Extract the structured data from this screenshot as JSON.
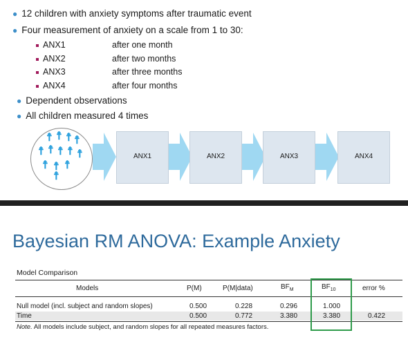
{
  "bullets": {
    "b1": "12 children with anxiety symptoms after traumatic event",
    "b2": "Four measurement of anxiety on a scale from 1 to 30:",
    "measures": [
      {
        "name": "ANX1",
        "desc": "after one month"
      },
      {
        "name": "ANX2",
        "desc": "after two months"
      },
      {
        "name": "ANX3",
        "desc": "after three months"
      },
      {
        "name": "ANX4",
        "desc": "after four months"
      }
    ],
    "b3": "Dependent observations",
    "b4": "All children measured 4 times"
  },
  "flow": {
    "boxes": [
      "ANX1",
      "ANX2",
      "ANX3",
      "ANX4"
    ],
    "icon": "children-group-icon",
    "arrow_color": "#9fd8f2",
    "box_color": "#dde6ef"
  },
  "slide2": {
    "title": "Bayesian RM ANOVA: Example Anxiety"
  },
  "table": {
    "caption": "Model Comparison",
    "headers": {
      "models": "Models",
      "pm": "P(M)",
      "pmd": "P(M|data)",
      "bfm": "BF",
      "bfm_sub": "M",
      "bf10": "BF",
      "bf10_sub": "10",
      "err": "error %"
    },
    "rows": [
      {
        "model": "Null model (incl. subject and random slopes)",
        "pm": "0.500",
        "pmd": "0.228",
        "bfm": "0.296",
        "bf10": "1.000",
        "err": ""
      },
      {
        "model": "Time",
        "pm": "0.500",
        "pmd": "0.772",
        "bfm": "3.380",
        "bf10": "3.380",
        "err": "0.422"
      }
    ],
    "note_label": "Note.",
    "note_text": " All models include subject, and random slopes for all repeated measures factors.",
    "highlight_color": "#2e9b4a"
  }
}
